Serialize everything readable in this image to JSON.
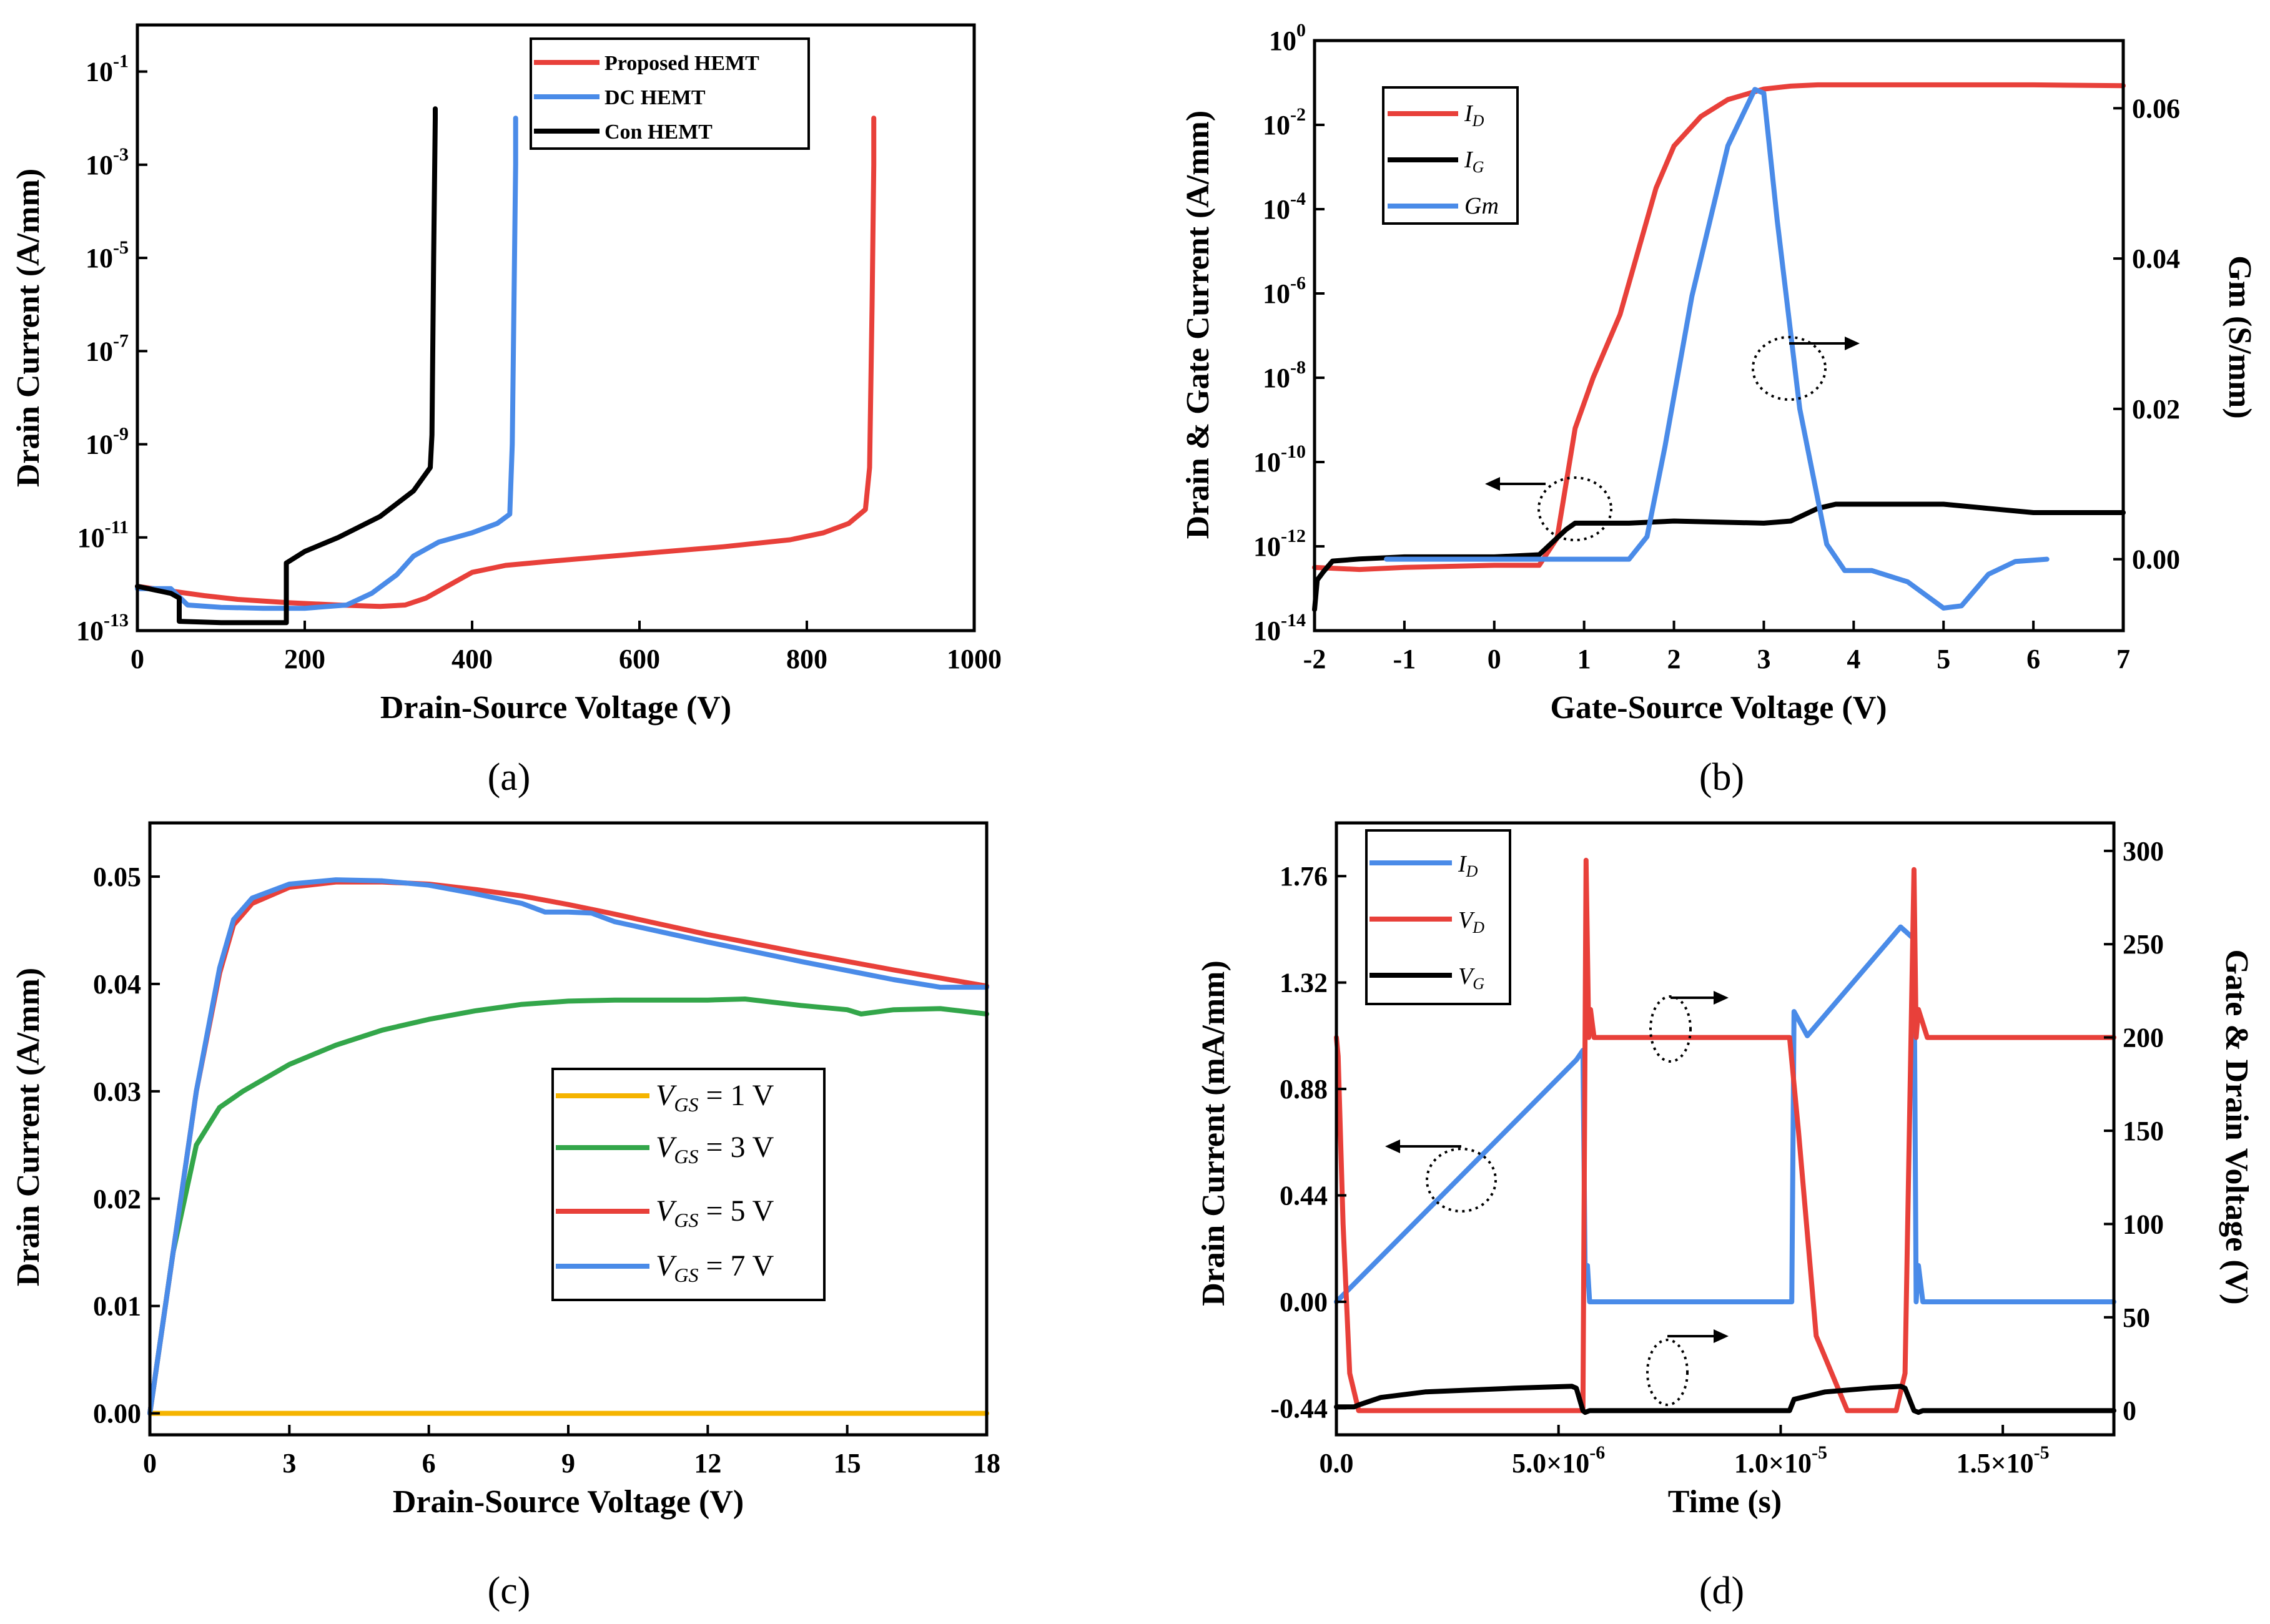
{
  "colors": {
    "red": "#e8403a",
    "blue": "#4a8be8",
    "black": "#000000",
    "green": "#33a64a",
    "orange": "#f5b400"
  },
  "captions": [
    "(a)",
    "(b)",
    "(c)",
    "(d)"
  ],
  "chart_data": [
    {
      "id": "a",
      "type": "line",
      "xlabel": "Drain-Source Voltage (V)",
      "ylabel": "Drain Current (A/mm)",
      "xlim": [
        0,
        1000
      ],
      "ylim_log10": [
        -13,
        0
      ],
      "yscale": "log",
      "xticks": [
        "0",
        "200",
        "400",
        "600",
        "800",
        "1000"
      ],
      "yticks": [
        {
          "base": "10",
          "exp": "-13"
        },
        {
          "base": "10",
          "exp": "-11"
        },
        {
          "base": "10",
          "exp": "-9"
        },
        {
          "base": "10",
          "exp": "-7"
        },
        {
          "base": "10",
          "exp": "-5"
        },
        {
          "base": "10",
          "exp": "-3"
        },
        {
          "base": "10",
          "exp": "-1"
        }
      ],
      "legend": [
        "Proposed HEMT",
        "DC  HEMT",
        "Con HEMT"
      ],
      "series": [
        {
          "name": "Proposed HEMT",
          "color": "red",
          "x": [
            0,
            40,
            80,
            120,
            180,
            240,
            290,
            320,
            345,
            370,
            400,
            440,
            500,
            600,
            700,
            780,
            820,
            850,
            870,
            875,
            878,
            880,
            880
          ],
          "log10y": [
            -12.05,
            -12.15,
            -12.25,
            -12.33,
            -12.4,
            -12.45,
            -12.48,
            -12.45,
            -12.3,
            -12.05,
            -11.75,
            -11.6,
            -11.5,
            -11.35,
            -11.2,
            -11.05,
            -10.9,
            -10.7,
            -10.4,
            -9.5,
            -6,
            -3,
            -2
          ]
        },
        {
          "name": "DC  HEMT",
          "color": "blue",
          "x": [
            0,
            40,
            60,
            100,
            150,
            200,
            250,
            280,
            310,
            330,
            360,
            400,
            430,
            445,
            448,
            450,
            452,
            452
          ],
          "log10y": [
            -12.1,
            -12.1,
            -12.45,
            -12.5,
            -12.52,
            -12.52,
            -12.45,
            -12.2,
            -11.8,
            -11.4,
            -11.1,
            -10.9,
            -10.7,
            -10.5,
            -9,
            -6,
            -3,
            -2
          ]
        },
        {
          "name": "Con HEMT",
          "color": "black",
          "x": [
            0,
            40,
            50,
            50,
            100,
            150,
            178,
            178,
            200,
            240,
            290,
            330,
            350,
            352,
            354,
            356,
            356
          ],
          "log10y": [
            -12.05,
            -12.2,
            -12.3,
            -12.8,
            -12.83,
            -12.83,
            -12.83,
            -11.55,
            -11.3,
            -11,
            -10.55,
            -10,
            -9.5,
            -8.8,
            -5,
            -2,
            -1.8
          ]
        }
      ]
    },
    {
      "id": "b",
      "type": "line",
      "xlabel": "Gate-Source Voltage (V)",
      "ylabel": "Drain & Gate Current (A/mm)",
      "y2label": "Gm (S/mm)",
      "xlim": [
        -2,
        7
      ],
      "ylim_log10": [
        -14,
        0
      ],
      "yscale": "log",
      "y2lim": [
        -0.0095,
        0.069
      ],
      "xticks": [
        "-2",
        "-1",
        "0",
        "1",
        "2",
        "3",
        "4",
        "5",
        "6",
        "7"
      ],
      "yticks": [
        {
          "base": "10",
          "exp": "-14"
        },
        {
          "base": "10",
          "exp": "-12"
        },
        {
          "base": "10",
          "exp": "-10"
        },
        {
          "base": "10",
          "exp": "-8"
        },
        {
          "base": "10",
          "exp": "-6"
        },
        {
          "base": "10",
          "exp": "-4"
        },
        {
          "base": "10",
          "exp": "-2"
        },
        {
          "base": "10",
          "exp": "0"
        }
      ],
      "y2ticks": [
        "0.00",
        "0.02",
        "0.04",
        "0.06"
      ],
      "legend": [
        {
          "base": "I",
          "sub": "D"
        },
        {
          "base": "I",
          "sub": "G"
        },
        {
          "base": "Gm",
          "sub": ""
        }
      ],
      "series": [
        {
          "name": "ID",
          "color": "red",
          "axis": "left",
          "x": [
            -2,
            -1.5,
            -1,
            0,
            0.5,
            0.7,
            0.8,
            0.9,
            1.1,
            1.4,
            1.6,
            1.8,
            2,
            2.3,
            2.6,
            3,
            3.3,
            3.6,
            4,
            5,
            6,
            7
          ],
          "log10y": [
            -12.5,
            -12.55,
            -12.5,
            -12.45,
            -12.45,
            -11.8,
            -10.5,
            -9.2,
            -8,
            -6.5,
            -5,
            -3.5,
            -2.5,
            -1.8,
            -1.4,
            -1.15,
            -1.08,
            -1.05,
            -1.05,
            -1.05,
            -1.05,
            -1.07
          ]
        },
        {
          "name": "IG",
          "color": "black",
          "axis": "left",
          "x": [
            -2,
            -1.97,
            -1.9,
            -1.8,
            -1.5,
            -1,
            0,
            0.5,
            0.8,
            0.9,
            1,
            1.5,
            2,
            3,
            3.3,
            3.6,
            3.8,
            4,
            5,
            5.5,
            6,
            7
          ],
          "log10y": [
            -13.5,
            -12.8,
            -12.6,
            -12.35,
            -12.3,
            -12.25,
            -12.25,
            -12.2,
            -11.6,
            -11.45,
            -11.45,
            -11.45,
            -11.4,
            -11.45,
            -11.4,
            -11.1,
            -11.0,
            -11.0,
            -11.0,
            -11.1,
            -11.2,
            -11.2
          ]
        },
        {
          "name": "Gm",
          "color": "blue",
          "axis": "right",
          "x": [
            -1.2,
            0,
            1,
            1.5,
            1.7,
            1.9,
            2.2,
            2.6,
            2.9,
            3.0,
            3.15,
            3.4,
            3.7,
            3.9,
            4.2,
            4.6,
            5.0,
            5.2,
            5.5,
            5.8,
            6.15
          ],
          "y": [
            0.0,
            0.0,
            0.0,
            0.0,
            0.003,
            0.015,
            0.035,
            0.055,
            0.0625,
            0.062,
            0.045,
            0.02,
            0.002,
            -0.0015,
            -0.0015,
            -0.003,
            -0.0065,
            -0.0062,
            -0.002,
            -0.0003,
            0.0
          ]
        }
      ]
    },
    {
      "id": "c",
      "type": "line",
      "xlabel": "Drain-Source Voltage (V)",
      "ylabel": "Drain Current (A/mm)",
      "xlim": [
        0,
        18
      ],
      "ylim": [
        -0.002,
        0.055
      ],
      "xticks": [
        "0",
        "3",
        "6",
        "9",
        "12",
        "15",
        "18"
      ],
      "yticks": [
        "0.00",
        "0.01",
        "0.02",
        "0.03",
        "0.04",
        "0.05"
      ],
      "legend": [
        {
          "pre": "V",
          "sub": "GS",
          "post": " = 1 V"
        },
        {
          "pre": "V",
          "sub": "GS",
          "post": " = 3 V"
        },
        {
          "pre": "V",
          "sub": "GS",
          "post": " = 5 V"
        },
        {
          "pre": "V",
          "sub": "GS",
          "post": " = 7 V"
        }
      ],
      "series": [
        {
          "name": "VGS = 1 V",
          "color": "orange",
          "x": [
            0,
            18
          ],
          "y": [
            0,
            0
          ]
        },
        {
          "name": "VGS = 3 V",
          "color": "green",
          "x": [
            0,
            0.5,
            1,
            1.5,
            2,
            3,
            4,
            5,
            6,
            7,
            8,
            9,
            10,
            11,
            12,
            12.8,
            14,
            15,
            15.3,
            16,
            17,
            18
          ],
          "y": [
            0,
            0.015,
            0.025,
            0.0285,
            0.03,
            0.0325,
            0.0343,
            0.0357,
            0.0367,
            0.0375,
            0.0381,
            0.0384,
            0.0385,
            0.0385,
            0.0385,
            0.0386,
            0.038,
            0.0376,
            0.0372,
            0.0376,
            0.0377,
            0.0372
          ]
        },
        {
          "name": "VGS = 5 V",
          "color": "red",
          "x": [
            0,
            0.5,
            1,
            1.5,
            1.8,
            2.2,
            3,
            4,
            5,
            6,
            7,
            8,
            9,
            10,
            12,
            14,
            16,
            18
          ],
          "y": [
            0,
            0.015,
            0.03,
            0.041,
            0.0455,
            0.0475,
            0.049,
            0.0495,
            0.0495,
            0.0493,
            0.0488,
            0.0482,
            0.0474,
            0.0465,
            0.0446,
            0.0429,
            0.0413,
            0.0398
          ]
        },
        {
          "name": "VGS = 7 V",
          "color": "blue",
          "x": [
            0,
            0.5,
            1,
            1.5,
            1.8,
            2.2,
            3,
            4,
            5,
            6,
            7,
            8,
            8.5,
            9,
            9.5,
            10,
            12,
            14,
            16,
            17,
            18
          ],
          "y": [
            0,
            0.015,
            0.03,
            0.0415,
            0.046,
            0.048,
            0.0493,
            0.0497,
            0.0496,
            0.0492,
            0.0484,
            0.0475,
            0.0467,
            0.0467,
            0.0466,
            0.0458,
            0.0439,
            0.0421,
            0.0404,
            0.0397,
            0.0397
          ]
        }
      ]
    },
    {
      "id": "d",
      "type": "line",
      "xlabel": "Time (s)",
      "ylabel": "Drain Current (mA/mm)",
      "y2label": "Gate & Drain Voltage (V)",
      "xlim": [
        0,
        1.75e-05
      ],
      "ylim": [
        -0.55,
        1.98
      ],
      "y2lim": [
        -13,
        315
      ],
      "xticks": [
        {
          "mant": "0.0",
          "exp": ""
        },
        {
          "mant": "5.0×10",
          "exp": "-6"
        },
        {
          "mant": "1.0×10",
          "exp": "-5"
        },
        {
          "mant": "1.5×10",
          "exp": "-5"
        }
      ],
      "yticks": [
        "-0.44",
        "0.00",
        "0.44",
        "0.88",
        "1.32",
        "1.76"
      ],
      "y2ticks": [
        "0",
        "50",
        "100",
        "150",
        "200",
        "250",
        "300"
      ],
      "legend": [
        {
          "base": "I",
          "sub": "D"
        },
        {
          "base": "V",
          "sub": "D"
        },
        {
          "base": "V",
          "sub": "G"
        }
      ],
      "series": [
        {
          "name": "ID",
          "color": "blue",
          "axis": "left",
          "x": [
            0,
            5.4e-06,
            5.55e-06,
            5.6e-06,
            5.65e-06,
            5.7e-06,
            1.02e-05,
            1.025e-05,
            1.03e-05,
            1.06e-05,
            1.27e-05,
            1.3e-05,
            1.305e-05,
            1.31e-05,
            1.32e-05,
            1.75e-05
          ],
          "y": [
            0,
            1.0,
            1.04,
            0.1,
            0.15,
            0.0,
            0.0,
            0.0,
            1.2,
            1.1,
            1.55,
            1.5,
            0.0,
            0.15,
            0.0,
            0.0
          ]
        },
        {
          "name": "VD",
          "color": "red",
          "axis": "right",
          "x": [
            0,
            4e-08,
            1.5e-07,
            3e-07,
            5e-07,
            5.45e-06,
            5.55e-06,
            5.62e-06,
            5.68e-06,
            5.72e-06,
            5.8e-06,
            1.02e-05,
            1.04e-05,
            1.08e-05,
            1.15e-05,
            1.26e-05,
            1.28e-05,
            1.3e-05,
            1.305e-05,
            1.31e-05,
            1.33e-05,
            1.75e-05
          ],
          "y": [
            200,
            190,
            100,
            20,
            0,
            0,
            0,
            295,
            200,
            215,
            200,
            200,
            150,
            40,
            0,
            0,
            20,
            290,
            200,
            215,
            200,
            200
          ]
        },
        {
          "name": "VG",
          "color": "black",
          "axis": "right",
          "x": [
            0,
            4e-07,
            5e-07,
            1e-06,
            2e-06,
            4e-06,
            5.3e-06,
            5.4e-06,
            5.55e-06,
            5.6e-06,
            5.7e-06,
            6e-06,
            1.02e-05,
            1.03e-05,
            1.1e-05,
            1.2e-05,
            1.27e-05,
            1.28e-05,
            1.3e-05,
            1.31e-05,
            1.32e-05,
            1.75e-05
          ],
          "y": [
            2,
            2,
            3,
            7,
            10,
            12,
            13,
            12,
            0,
            -1,
            0,
            0,
            0,
            6,
            10,
            12,
            13,
            12,
            0,
            -1,
            0,
            0
          ]
        }
      ]
    }
  ]
}
